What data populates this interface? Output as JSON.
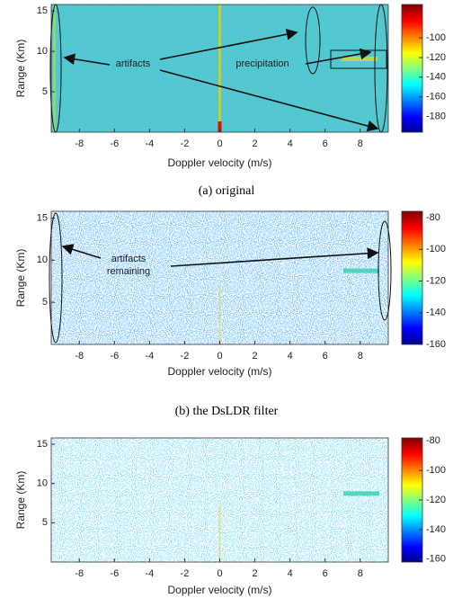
{
  "chart_data": [
    {
      "type": "heatmap",
      "caption": "(a) original",
      "xlabel": "Doppler velocity (m/s)",
      "ylabel": "Range (Km)",
      "xlim": [
        -9.6,
        9.6
      ],
      "ylim": [
        0,
        15.8
      ],
      "xticks": [
        -8,
        -6,
        -4,
        -2,
        0,
        2,
        4,
        6,
        8
      ],
      "yticks": [
        5,
        10,
        15
      ],
      "colorbar": {
        "lim": [
          -196,
          -66
        ],
        "ticks": [
          -100,
          -120,
          -140,
          -160,
          -180
        ]
      },
      "annotations": [
        "artifacts",
        "precipitation"
      ]
    },
    {
      "type": "heatmap",
      "caption": "(b) the DsLDR filter",
      "xlabel": "Doppler velocity (m/s)",
      "ylabel": "Range (Km)",
      "xlim": [
        -9.6,
        9.6
      ],
      "ylim": [
        0,
        15.8
      ],
      "xticks": [
        -8,
        -6,
        -4,
        -2,
        0,
        2,
        4,
        6,
        8
      ],
      "yticks": [
        5,
        10,
        15
      ],
      "colorbar": {
        "lim": [
          -160,
          -76
        ],
        "ticks": [
          -80,
          -100,
          -120,
          -140,
          -160
        ]
      },
      "annotations": [
        "artifacts",
        "remaining"
      ]
    },
    {
      "type": "heatmap",
      "xlabel": "Doppler velocity (m/s)",
      "ylabel": "Range (Km)",
      "xlim": [
        -9.6,
        9.6
      ],
      "ylim": [
        0,
        15.8
      ],
      "xticks": [
        -8,
        -6,
        -4,
        -2,
        0,
        2,
        4,
        6,
        8
      ],
      "yticks": [
        5,
        10,
        15
      ],
      "colorbar": {
        "lim": [
          -162,
          -78
        ],
        "ticks": [
          -80,
          -100,
          -120,
          -140,
          -160
        ]
      }
    }
  ]
}
